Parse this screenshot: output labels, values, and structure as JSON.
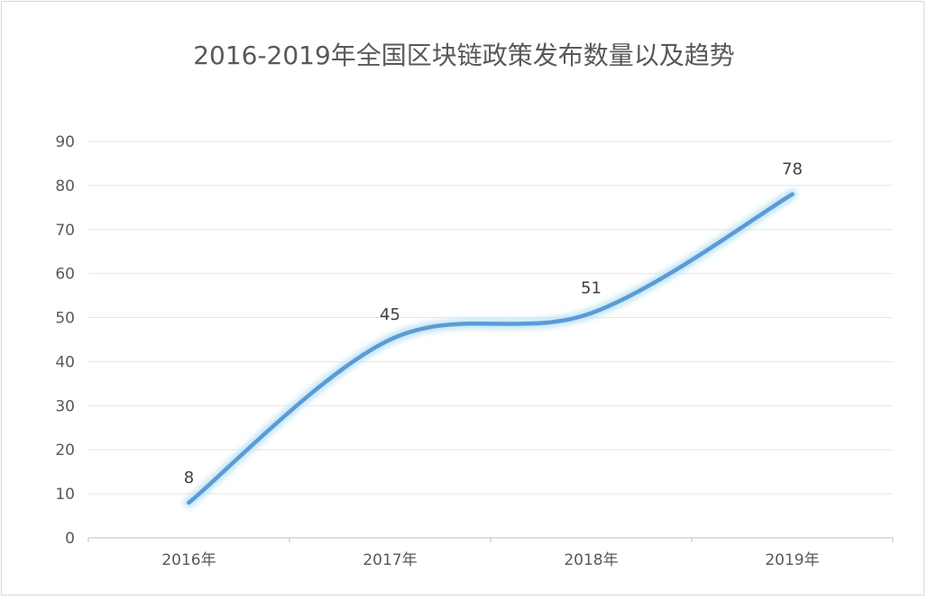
{
  "chart_data": {
    "type": "line",
    "title": "2016-2019年全国区块链政策发布数量以及趋势",
    "categories": [
      "2016年",
      "2017年",
      "2018年",
      "2019年"
    ],
    "series": [
      {
        "values": [
          8,
          45,
          51,
          78
        ]
      }
    ],
    "ylim": [
      0,
      90
    ],
    "yticks": [
      0,
      10,
      20,
      30,
      40,
      50,
      60,
      70,
      80,
      90
    ],
    "smooth": true,
    "grid": true,
    "legend": "none",
    "data_labels": true,
    "colors": {
      "line": "#5b9bd5",
      "glow": "#bfe3f5",
      "grid": "#e6e6e6",
      "axis": "#bfbfbf"
    }
  }
}
